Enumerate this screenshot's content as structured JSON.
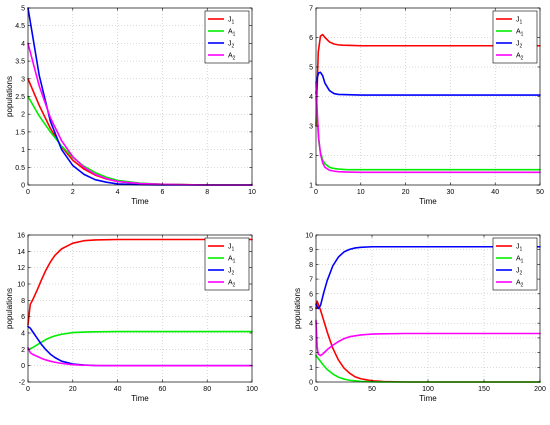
{
  "chart_data": [
    {
      "type": "line",
      "xlabel": "Time",
      "ylabel": "populations",
      "xlim": [
        0,
        10
      ],
      "ylim": [
        0,
        5
      ],
      "xticks": [
        0,
        2,
        4,
        6,
        8,
        10
      ],
      "yticks": [
        0,
        0.5,
        1,
        1.5,
        2,
        2.5,
        3,
        3.5,
        4,
        4.5,
        5
      ],
      "grid": true,
      "legend": "top-right",
      "series": [
        {
          "name": "J1",
          "label": "J",
          "sub": "1",
          "color": "#ff0000",
          "x": [
            0,
            0.5,
            1,
            1.5,
            2,
            2.5,
            3,
            3.5,
            4,
            5,
            6,
            7,
            8,
            10
          ],
          "y": [
            3.0,
            2.25,
            1.6,
            1.08,
            0.7,
            0.45,
            0.28,
            0.17,
            0.1,
            0.04,
            0.02,
            0.01,
            0.0,
            0.0
          ]
        },
        {
          "name": "A1",
          "label": "A",
          "sub": "1",
          "color": "#00ee00",
          "x": [
            0,
            0.5,
            1,
            1.5,
            2,
            2.5,
            3,
            3.5,
            4,
            5,
            6,
            7,
            8,
            10
          ],
          "y": [
            2.5,
            1.95,
            1.5,
            1.1,
            0.78,
            0.53,
            0.35,
            0.22,
            0.13,
            0.05,
            0.02,
            0.01,
            0.0,
            0.0
          ]
        },
        {
          "name": "J2",
          "label": "J",
          "sub": "2",
          "color": "#0000ff",
          "x": [
            0,
            0.5,
            1,
            1.5,
            2,
            2.5,
            3,
            3.5,
            4,
            5,
            6,
            7,
            8,
            10
          ],
          "y": [
            5.0,
            3.1,
            1.8,
            1.0,
            0.55,
            0.3,
            0.15,
            0.08,
            0.03,
            0.01,
            0.0,
            0.0,
            0.0,
            0.0
          ]
        },
        {
          "name": "A2",
          "label": "A",
          "sub": "2",
          "color": "#ff00ff",
          "x": [
            0,
            0.5,
            1,
            1.5,
            2,
            2.5,
            3,
            3.5,
            4,
            5,
            6,
            7,
            8,
            10
          ],
          "y": [
            4.0,
            2.8,
            1.9,
            1.25,
            0.8,
            0.5,
            0.3,
            0.18,
            0.1,
            0.04,
            0.02,
            0.01,
            0.0,
            0.0
          ]
        }
      ]
    },
    {
      "type": "line",
      "xlabel": "Time",
      "ylabel": "",
      "xlim": [
        0,
        50
      ],
      "ylim": [
        1,
        7
      ],
      "xticks": [
        0,
        10,
        20,
        30,
        40,
        50
      ],
      "yticks": [
        1,
        2,
        3,
        4,
        5,
        6,
        7
      ],
      "grid": true,
      "legend": "top-right",
      "series": [
        {
          "name": "J1",
          "label": "J",
          "sub": "1",
          "color": "#ff0000",
          "x": [
            0,
            0.5,
            1,
            1.5,
            2,
            3,
            4,
            5,
            6,
            8,
            10,
            50
          ],
          "y": [
            3.0,
            5.5,
            6.05,
            6.1,
            6.0,
            5.85,
            5.78,
            5.75,
            5.74,
            5.73,
            5.72,
            5.72
          ]
        },
        {
          "name": "A1",
          "label": "A",
          "sub": "1",
          "color": "#00ee00",
          "x": [
            0,
            0.3,
            0.6,
            1,
            1.5,
            2,
            3,
            4,
            5,
            7,
            10,
            50
          ],
          "y": [
            4.0,
            3.2,
            2.5,
            2.1,
            1.85,
            1.72,
            1.6,
            1.56,
            1.54,
            1.52,
            1.52,
            1.52
          ]
        },
        {
          "name": "J2",
          "label": "J",
          "sub": "2",
          "color": "#0000ff",
          "x": [
            0,
            0.3,
            0.6,
            1,
            1.5,
            2,
            3,
            4,
            5,
            7,
            10,
            12,
            50
          ],
          "y": [
            4.1,
            4.65,
            4.8,
            4.82,
            4.7,
            4.45,
            4.2,
            4.1,
            4.07,
            4.06,
            4.05,
            4.05,
            4.05
          ]
        },
        {
          "name": "A2",
          "label": "A",
          "sub": "2",
          "color": "#ff00ff",
          "x": [
            0,
            0.3,
            0.6,
            1,
            1.5,
            2,
            3,
            4,
            5,
            7,
            10,
            50
          ],
          "y": [
            4.5,
            3.4,
            2.6,
            2.05,
            1.75,
            1.6,
            1.5,
            1.47,
            1.45,
            1.44,
            1.43,
            1.43
          ]
        }
      ]
    },
    {
      "type": "line",
      "xlabel": "Time",
      "ylabel": "populations",
      "xlim": [
        0,
        100
      ],
      "ylim": [
        -2,
        16
      ],
      "xticks": [
        0,
        20,
        40,
        60,
        80,
        100
      ],
      "yticks": [
        -2,
        0,
        2,
        4,
        6,
        8,
        10,
        12,
        14,
        16
      ],
      "grid": true,
      "legend": "top-right",
      "series": [
        {
          "name": "J1",
          "label": "J",
          "sub": "1",
          "color": "#ff0000",
          "x": [
            0,
            1,
            2,
            4,
            6,
            8,
            10,
            12,
            15,
            20,
            25,
            30,
            40,
            60,
            100
          ],
          "y": [
            5.0,
            7.5,
            8.0,
            9.2,
            10.5,
            11.7,
            12.7,
            13.5,
            14.3,
            15.0,
            15.3,
            15.4,
            15.45,
            15.45,
            15.45
          ]
        },
        {
          "name": "A1",
          "label": "A",
          "sub": "1",
          "color": "#00ee00",
          "x": [
            0,
            2,
            5,
            8,
            10,
            12,
            15,
            20,
            25,
            30,
            40,
            60,
            100
          ],
          "y": [
            2.0,
            2.2,
            2.7,
            3.2,
            3.45,
            3.65,
            3.85,
            4.05,
            4.12,
            4.15,
            4.17,
            4.17,
            4.17
          ]
        },
        {
          "name": "J2",
          "label": "J",
          "sub": "2",
          "color": "#0000ff",
          "x": [
            0,
            1,
            2,
            4,
            6,
            8,
            10,
            12,
            15,
            20,
            25,
            30,
            40,
            60,
            100
          ],
          "y": [
            4.8,
            4.6,
            4.2,
            3.4,
            2.6,
            1.95,
            1.4,
            1.0,
            0.55,
            0.2,
            0.07,
            0.02,
            0.0,
            0.0,
            0.0
          ]
        },
        {
          "name": "A2",
          "label": "A",
          "sub": "2",
          "color": "#ff00ff",
          "x": [
            0,
            1,
            2,
            4,
            6,
            8,
            10,
            12,
            15,
            20,
            25,
            30,
            40,
            60,
            100
          ],
          "y": [
            2.2,
            1.6,
            1.4,
            1.15,
            0.9,
            0.7,
            0.55,
            0.42,
            0.28,
            0.12,
            0.05,
            0.02,
            0.0,
            0.0,
            0.0
          ]
        }
      ]
    },
    {
      "type": "line",
      "xlabel": "Time",
      "ylabel": "populations",
      "xlim": [
        0,
        200
      ],
      "ylim": [
        0,
        10
      ],
      "xticks": [
        0,
        50,
        100,
        150,
        200
      ],
      "yticks": [
        0,
        1,
        2,
        3,
        4,
        5,
        6,
        7,
        8,
        9,
        10
      ],
      "grid": true,
      "legend": "top-right",
      "series": [
        {
          "name": "J1",
          "label": "J",
          "sub": "1",
          "color": "#ff0000",
          "x": [
            0,
            1,
            2,
            4,
            6,
            8,
            10,
            12,
            15,
            20,
            25,
            30,
            35,
            40,
            50,
            60,
            80,
            200
          ],
          "y": [
            5.0,
            5.5,
            5.3,
            4.9,
            4.4,
            3.9,
            3.4,
            2.95,
            2.3,
            1.5,
            0.95,
            0.6,
            0.35,
            0.22,
            0.08,
            0.03,
            0.0,
            0.0
          ]
        },
        {
          "name": "A1",
          "label": "A",
          "sub": "1",
          "color": "#00ee00",
          "x": [
            0,
            2,
            4,
            6,
            8,
            10,
            15,
            20,
            25,
            30,
            40,
            50,
            60,
            80,
            200
          ],
          "y": [
            1.8,
            1.6,
            1.4,
            1.2,
            1.02,
            0.85,
            0.55,
            0.33,
            0.2,
            0.12,
            0.04,
            0.01,
            0.0,
            0.0,
            0.0
          ]
        },
        {
          "name": "J2",
          "label": "J",
          "sub": "2",
          "color": "#0000ff",
          "x": [
            0,
            2,
            4,
            5,
            7,
            10,
            15,
            20,
            25,
            30,
            35,
            40,
            50,
            60,
            80,
            100,
            200
          ],
          "y": [
            5.3,
            5.0,
            5.2,
            5.5,
            6.1,
            6.9,
            7.9,
            8.5,
            8.85,
            9.02,
            9.12,
            9.16,
            9.2,
            9.2,
            9.2,
            9.2,
            9.2
          ]
        },
        {
          "name": "A2",
          "label": "A",
          "sub": "2",
          "color": "#ff00ff",
          "x": [
            0,
            1,
            2,
            4,
            6,
            8,
            10,
            15,
            20,
            25,
            30,
            40,
            50,
            60,
            80,
            100,
            200
          ],
          "y": [
            4.2,
            2.4,
            1.9,
            1.8,
            1.9,
            2.05,
            2.2,
            2.5,
            2.75,
            2.95,
            3.08,
            3.2,
            3.26,
            3.28,
            3.3,
            3.3,
            3.3
          ]
        }
      ]
    }
  ]
}
